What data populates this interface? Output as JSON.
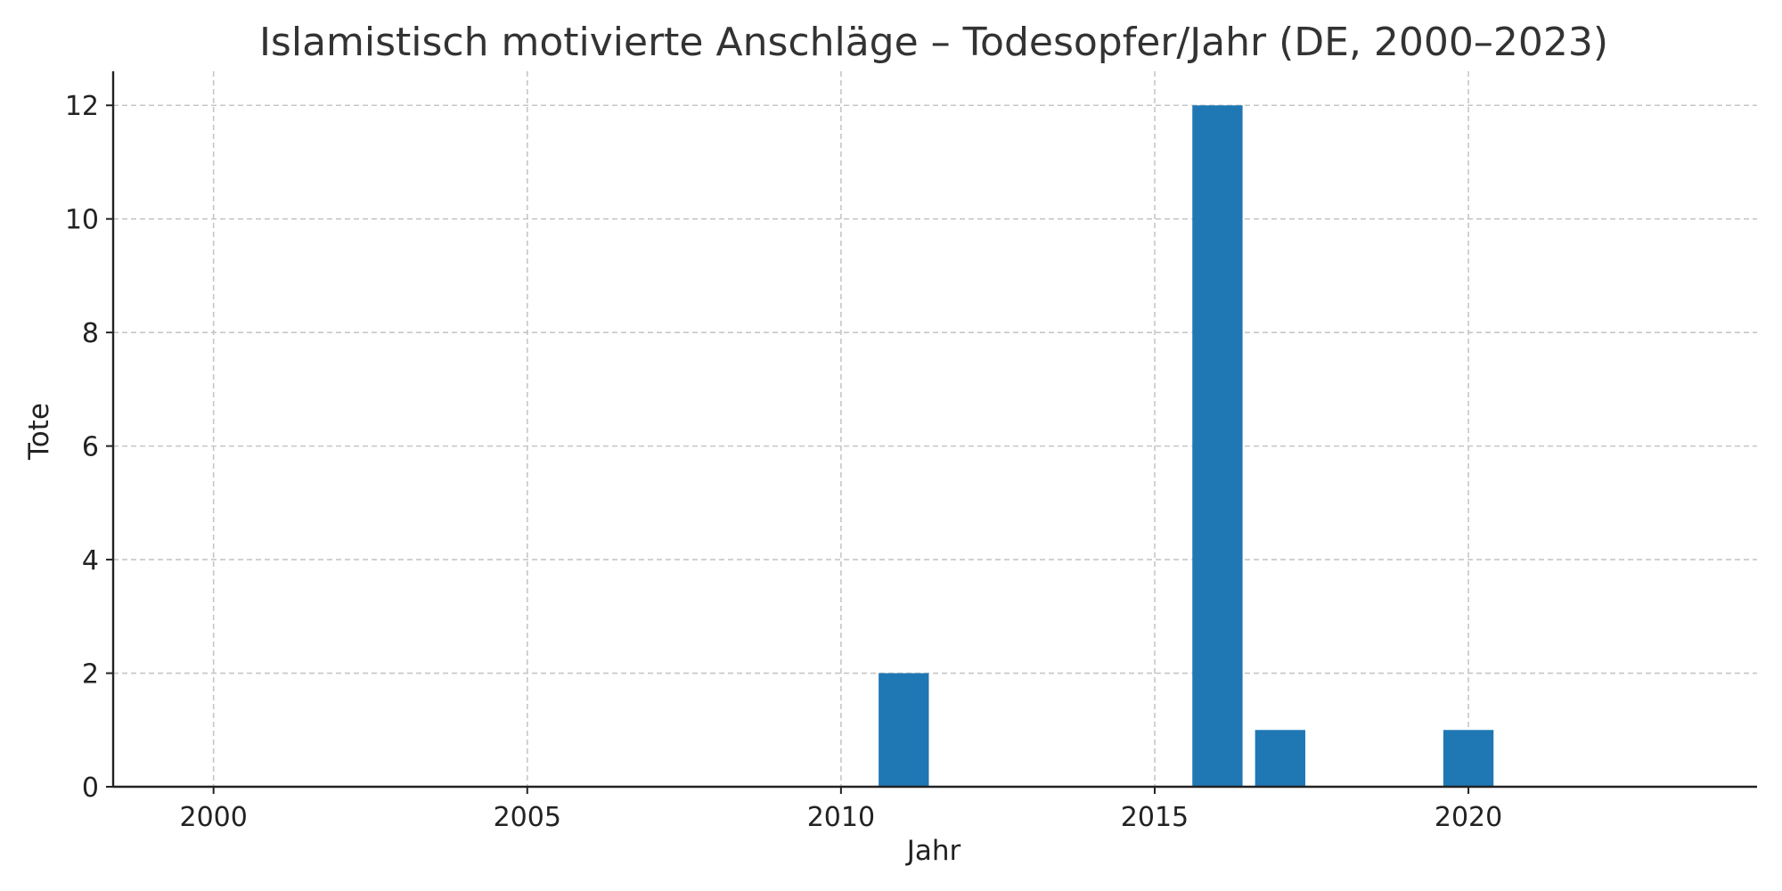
{
  "chart_data": {
    "type": "bar",
    "title": "Islamistisch motivierte Anschläge – Todesopfer/Jahr (DE, 2000–2023)",
    "xlabel": "Jahr",
    "ylabel": "Tote",
    "x": [
      2000,
      2001,
      2002,
      2003,
      2004,
      2005,
      2006,
      2007,
      2008,
      2009,
      2010,
      2011,
      2012,
      2013,
      2014,
      2015,
      2016,
      2017,
      2018,
      2019,
      2020,
      2021,
      2022,
      2023
    ],
    "values": [
      0,
      0,
      0,
      0,
      0,
      0,
      0,
      0,
      0,
      0,
      0,
      2,
      0,
      0,
      0,
      0,
      12,
      1,
      0,
      0,
      1,
      0,
      0,
      0
    ],
    "xlim": [
      1998.4,
      2024.6
    ],
    "ylim": [
      0,
      12.6
    ],
    "xticks": [
      2000,
      2005,
      2010,
      2015,
      2020
    ],
    "yticks": [
      0,
      2,
      4,
      6,
      8,
      10,
      12
    ],
    "grid": true,
    "bar_color": "#1f77b4"
  }
}
